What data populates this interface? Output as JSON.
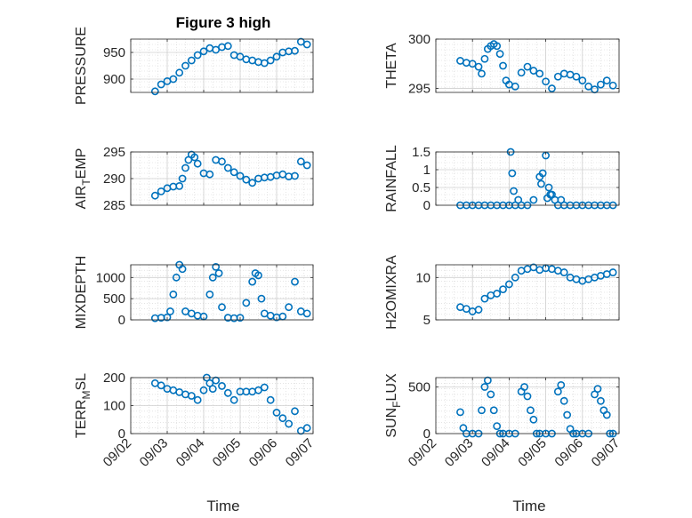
{
  "figure": {
    "title": "Figure 3 high",
    "xlabel": "Time",
    "marker_color": "#0072BD"
  },
  "chart_data": [
    {
      "type": "scatter",
      "ylabel": "PRESSURE",
      "ylim": [
        875,
        975
      ],
      "yticks": [
        {
          "v": 900,
          "label": "900"
        },
        {
          "v": 950,
          "label": "950"
        }
      ],
      "xlim": [
        "09/02",
        "09/07"
      ],
      "x": [
        "09/02 16:00",
        "09/02 20:00",
        "09/03 00:00",
        "09/03 04:00",
        "09/03 08:00",
        "09/03 12:00",
        "09/03 16:00",
        "09/03 20:00",
        "09/04 00:00",
        "09/04 04:00",
        "09/04 08:00",
        "09/04 12:00",
        "09/04 16:00",
        "09/04 20:00",
        "09/05 00:00",
        "09/05 04:00",
        "09/05 08:00",
        "09/05 12:00",
        "09/05 16:00",
        "09/05 20:00",
        "09/06 00:00",
        "09/06 04:00",
        "09/06 08:00",
        "09/06 12:00",
        "09/06 16:00",
        "09/06 20:00"
      ],
      "y": [
        877,
        890,
        896,
        900,
        912,
        925,
        935,
        945,
        952,
        958,
        955,
        960,
        962,
        945,
        942,
        937,
        935,
        932,
        930,
        935,
        942,
        950,
        952,
        953,
        970,
        965
      ]
    },
    {
      "type": "scatter",
      "ylabel": "THETA",
      "ylim": [
        294.6,
        300
      ],
      "yticks": [
        {
          "v": 295,
          "label": "295"
        },
        {
          "v": 300,
          "label": "300"
        }
      ],
      "xlim": [
        "09/02",
        "09/07"
      ],
      "x": [
        "09/02 16:00",
        "09/02 20:00",
        "09/03 00:00",
        "09/03 04:00",
        "09/03 06:00",
        "09/03 08:00",
        "09/03 10:00",
        "09/03 12:00",
        "09/03 14:00",
        "09/03 16:00",
        "09/03 18:00",
        "09/03 20:00",
        "09/03 22:00",
        "09/04 00:00",
        "09/04 04:00",
        "09/04 08:00",
        "09/04 12:00",
        "09/04 16:00",
        "09/04 20:00",
        "09/05 00:00",
        "09/05 04:00",
        "09/05 08:00",
        "09/05 12:00",
        "09/05 16:00",
        "09/05 20:00",
        "09/06 00:00",
        "09/06 04:00",
        "09/06 08:00",
        "09/06 12:00",
        "09/06 16:00",
        "09/06 20:00"
      ],
      "y": [
        297.8,
        297.6,
        297.5,
        297.2,
        296.5,
        298.0,
        299.0,
        299.3,
        299.5,
        299.3,
        298.5,
        297.3,
        295.8,
        295.4,
        295.2,
        296.6,
        297.2,
        296.8,
        296.5,
        295.7,
        295.0,
        296.2,
        296.5,
        296.4,
        296.2,
        295.8,
        295.2,
        294.9,
        295.4,
        295.8,
        295.3
      ]
    },
    {
      "type": "scatter",
      "ylabel": "AIR_TEMP",
      "ylim": [
        285,
        295
      ],
      "yticks": [
        {
          "v": 285,
          "label": "285"
        },
        {
          "v": 290,
          "label": "290"
        },
        {
          "v": 295,
          "label": "295"
        }
      ],
      "xlim": [
        "09/02",
        "09/07"
      ],
      "x": [
        "09/02 16:00",
        "09/02 20:00",
        "09/03 00:00",
        "09/03 04:00",
        "09/03 08:00",
        "09/03 10:00",
        "09/03 12:00",
        "09/03 14:00",
        "09/03 16:00",
        "09/03 18:00",
        "09/03 20:00",
        "09/04 00:00",
        "09/04 04:00",
        "09/04 08:00",
        "09/04 12:00",
        "09/04 16:00",
        "09/04 20:00",
        "09/05 00:00",
        "09/05 04:00",
        "09/05 08:00",
        "09/05 12:00",
        "09/05 16:00",
        "09/05 20:00",
        "09/06 00:00",
        "09/06 04:00",
        "09/06 08:00",
        "09/06 12:00",
        "09/06 16:00",
        "09/06 20:00"
      ],
      "y": [
        286.8,
        287.6,
        288.2,
        288.5,
        288.6,
        290.0,
        292.0,
        293.5,
        294.5,
        294.0,
        292.8,
        291.0,
        290.8,
        293.5,
        293.2,
        292.0,
        291.2,
        290.5,
        289.8,
        289.2,
        290.0,
        290.2,
        290.3,
        290.6,
        290.8,
        290.4,
        290.5,
        293.2,
        292.5
      ]
    },
    {
      "type": "scatter",
      "ylabel": "RAINFALL",
      "ylim": [
        0,
        1.5
      ],
      "yticks": [
        {
          "v": 0,
          "label": "0"
        },
        {
          "v": 0.5,
          "label": "0.5"
        },
        {
          "v": 1,
          "label": "1"
        },
        {
          "v": 1.5,
          "label": "1.5"
        }
      ],
      "xlim": [
        "09/02",
        "09/07"
      ],
      "x": [
        "09/02 16:00",
        "09/02 20:00",
        "09/03 00:00",
        "09/03 04:00",
        "09/03 08:00",
        "09/03 12:00",
        "09/03 16:00",
        "09/03 20:00",
        "09/04 00:00",
        "09/04 01:00",
        "09/04 02:00",
        "09/04 03:00",
        "09/04 04:00",
        "09/04 06:00",
        "09/04 08:00",
        "09/04 12:00",
        "09/04 16:00",
        "09/04 20:00",
        "09/04 21:00",
        "09/04 22:00",
        "09/05 00:00",
        "09/05 01:00",
        "09/05 02:00",
        "09/05 03:00",
        "09/05 04:00",
        "09/05 06:00",
        "09/05 08:00",
        "09/05 10:00",
        "09/05 12:00",
        "09/05 16:00",
        "09/05 20:00",
        "09/06 00:00",
        "09/06 04:00",
        "09/06 08:00",
        "09/06 12:00",
        "09/06 16:00",
        "09/06 20:00"
      ],
      "y": [
        0,
        0,
        0,
        0,
        0,
        0,
        0,
        0,
        0,
        1.5,
        0.9,
        0.4,
        0,
        0.15,
        0,
        0,
        0.15,
        0.8,
        0.6,
        0.9,
        1.4,
        0.2,
        0.5,
        0.3,
        0.3,
        0.15,
        0,
        0.15,
        0,
        0,
        0,
        0,
        0,
        0,
        0,
        0,
        0
      ]
    },
    {
      "type": "scatter",
      "ylabel": "MIXDEPTH",
      "ylim": [
        0,
        1300
      ],
      "yticks": [
        {
          "v": 0,
          "label": "0"
        },
        {
          "v": 500,
          "label": "500"
        },
        {
          "v": 1000,
          "label": "1000"
        }
      ],
      "xlim": [
        "09/02",
        "09/07"
      ],
      "x": [
        "09/02 16:00",
        "09/02 20:00",
        "09/03 00:00",
        "09/03 02:00",
        "09/03 04:00",
        "09/03 06:00",
        "09/03 08:00",
        "09/03 10:00",
        "09/03 12:00",
        "09/03 16:00",
        "09/03 20:00",
        "09/04 00:00",
        "09/04 04:00",
        "09/04 06:00",
        "09/04 08:00",
        "09/04 10:00",
        "09/04 12:00",
        "09/04 16:00",
        "09/04 20:00",
        "09/05 00:00",
        "09/05 04:00",
        "09/05 08:00",
        "09/05 10:00",
        "09/05 12:00",
        "09/05 14:00",
        "09/05 16:00",
        "09/05 20:00",
        "09/06 00:00",
        "09/06 04:00",
        "09/06 08:00",
        "09/06 12:00",
        "09/06 16:00",
        "09/06 20:00"
      ],
      "y": [
        40,
        50,
        60,
        200,
        600,
        1000,
        1300,
        1200,
        200,
        150,
        100,
        80,
        600,
        1000,
        1250,
        1100,
        300,
        50,
        40,
        50,
        400,
        900,
        1100,
        1050,
        500,
        150,
        100,
        60,
        80,
        300,
        900,
        200,
        150
      ]
    },
    {
      "type": "scatter",
      "ylabel": "H2OMIXRA",
      "ylim": [
        5,
        11.5
      ],
      "yticks": [
        {
          "v": 5,
          "label": "5"
        },
        {
          "v": 10,
          "label": "10"
        }
      ],
      "xlim": [
        "09/02",
        "09/07"
      ],
      "x": [
        "09/02 16:00",
        "09/02 20:00",
        "09/03 00:00",
        "09/03 04:00",
        "09/03 08:00",
        "09/03 12:00",
        "09/03 16:00",
        "09/03 20:00",
        "09/04 00:00",
        "09/04 04:00",
        "09/04 08:00",
        "09/04 12:00",
        "09/04 16:00",
        "09/04 20:00",
        "09/05 00:00",
        "09/05 04:00",
        "09/05 08:00",
        "09/05 12:00",
        "09/05 16:00",
        "09/05 20:00",
        "09/06 00:00",
        "09/06 04:00",
        "09/06 08:00",
        "09/06 12:00",
        "09/06 16:00",
        "09/06 20:00"
      ],
      "y": [
        6.5,
        6.3,
        6.0,
        6.2,
        7.5,
        7.9,
        8.1,
        8.6,
        9.2,
        10.0,
        10.8,
        11.0,
        11.2,
        10.9,
        11.1,
        11.0,
        10.8,
        10.6,
        10.0,
        9.8,
        9.6,
        9.8,
        10.0,
        10.2,
        10.4,
        10.6
      ]
    },
    {
      "type": "scatter",
      "ylabel": "TERR_MSL",
      "ylim": [
        0,
        200
      ],
      "yticks": [
        {
          "v": 0,
          "label": "0"
        },
        {
          "v": 100,
          "label": "100"
        },
        {
          "v": 200,
          "label": "200"
        }
      ],
      "xlim": [
        "09/02",
        "09/07"
      ],
      "x": [
        "09/02 16:00",
        "09/02 20:00",
        "09/03 00:00",
        "09/03 04:00",
        "09/03 08:00",
        "09/03 12:00",
        "09/03 16:00",
        "09/03 20:00",
        "09/04 00:00",
        "09/04 02:00",
        "09/04 04:00",
        "09/04 06:00",
        "09/04 08:00",
        "09/04 12:00",
        "09/04 16:00",
        "09/04 20:00",
        "09/05 00:00",
        "09/05 04:00",
        "09/05 08:00",
        "09/05 12:00",
        "09/05 16:00",
        "09/05 20:00",
        "09/06 00:00",
        "09/06 04:00",
        "09/06 08:00",
        "09/06 12:00",
        "09/06 16:00",
        "09/06 20:00"
      ],
      "y": [
        180,
        172,
        160,
        155,
        148,
        140,
        135,
        120,
        155,
        200,
        180,
        160,
        190,
        170,
        145,
        120,
        150,
        150,
        150,
        155,
        165,
        120,
        75,
        55,
        35,
        80,
        10,
        20
      ]
    },
    {
      "type": "scatter",
      "ylabel": "SUN_FLUX",
      "ylim": [
        0,
        600
      ],
      "yticks": [
        {
          "v": 0,
          "label": "0"
        },
        {
          "v": 500,
          "label": "500"
        }
      ],
      "xlim": [
        "09/02",
        "09/07"
      ],
      "x": [
        "09/02 16:00",
        "09/02 18:00",
        "09/02 20:00",
        "09/03 00:00",
        "09/03 04:00",
        "09/03 06:00",
        "09/03 08:00",
        "09/03 10:00",
        "09/03 12:00",
        "09/03 14:00",
        "09/03 16:00",
        "09/03 18:00",
        "09/03 20:00",
        "09/04 00:00",
        "09/04 04:00",
        "09/04 08:00",
        "09/04 10:00",
        "09/04 12:00",
        "09/04 14:00",
        "09/04 16:00",
        "09/04 18:00",
        "09/04 20:00",
        "09/05 00:00",
        "09/05 04:00",
        "09/05 08:00",
        "09/05 10:00",
        "09/05 12:00",
        "09/05 14:00",
        "09/05 16:00",
        "09/05 18:00",
        "09/05 20:00",
        "09/06 00:00",
        "09/06 04:00",
        "09/06 08:00",
        "09/06 10:00",
        "09/06 12:00",
        "09/06 14:00",
        "09/06 16:00",
        "09/06 18:00",
        "09/06 20:00"
      ],
      "y": [
        230,
        60,
        0,
        0,
        0,
        250,
        500,
        570,
        420,
        250,
        80,
        0,
        0,
        0,
        0,
        450,
        500,
        400,
        250,
        150,
        0,
        0,
        0,
        0,
        450,
        520,
        350,
        200,
        50,
        0,
        0,
        0,
        0,
        420,
        480,
        350,
        250,
        200,
        0,
        0
      ]
    }
  ]
}
